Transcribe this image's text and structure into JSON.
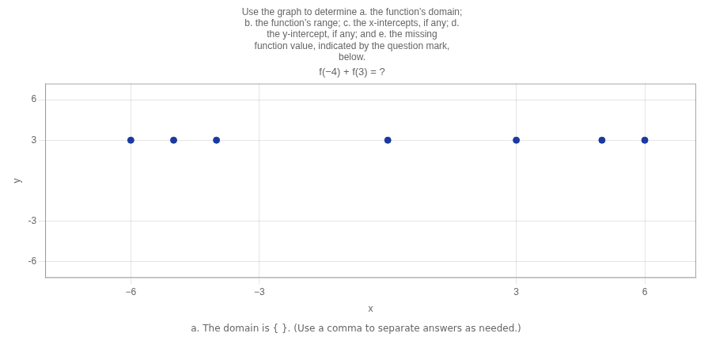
{
  "chart_data": {
    "type": "scatter",
    "title": [
      "Use the graph to determine a. the function’s domain;",
      "b. the function’s range; c. the x-intercepts, if any; d.",
      "the y-intercept, if any; and e. the missing",
      "function value, indicated by the question mark,",
      "below."
    ],
    "subtitle": "f(−4) + f(3) = ?",
    "annotations": [
      "a. The domain is { }. (Use a comma to separate answers as needed.)"
    ],
    "xlabel": "x",
    "ylabel": "y",
    "x": [
      -6,
      -5,
      -4,
      0,
      3,
      5,
      6
    ],
    "values": [
      3,
      3,
      3,
      3,
      3,
      3,
      3
    ],
    "color": "#1a3a9f",
    "xlim": [
      -8,
      7.2
    ],
    "ylim": [
      -7.2,
      7.2
    ],
    "xticks": [
      {
        "value": -6,
        "label": "−6"
      },
      {
        "value": -3,
        "label": "−3"
      },
      3,
      6
    ],
    "yticks": [
      -6,
      -3,
      3,
      6
    ],
    "grid": true
  }
}
